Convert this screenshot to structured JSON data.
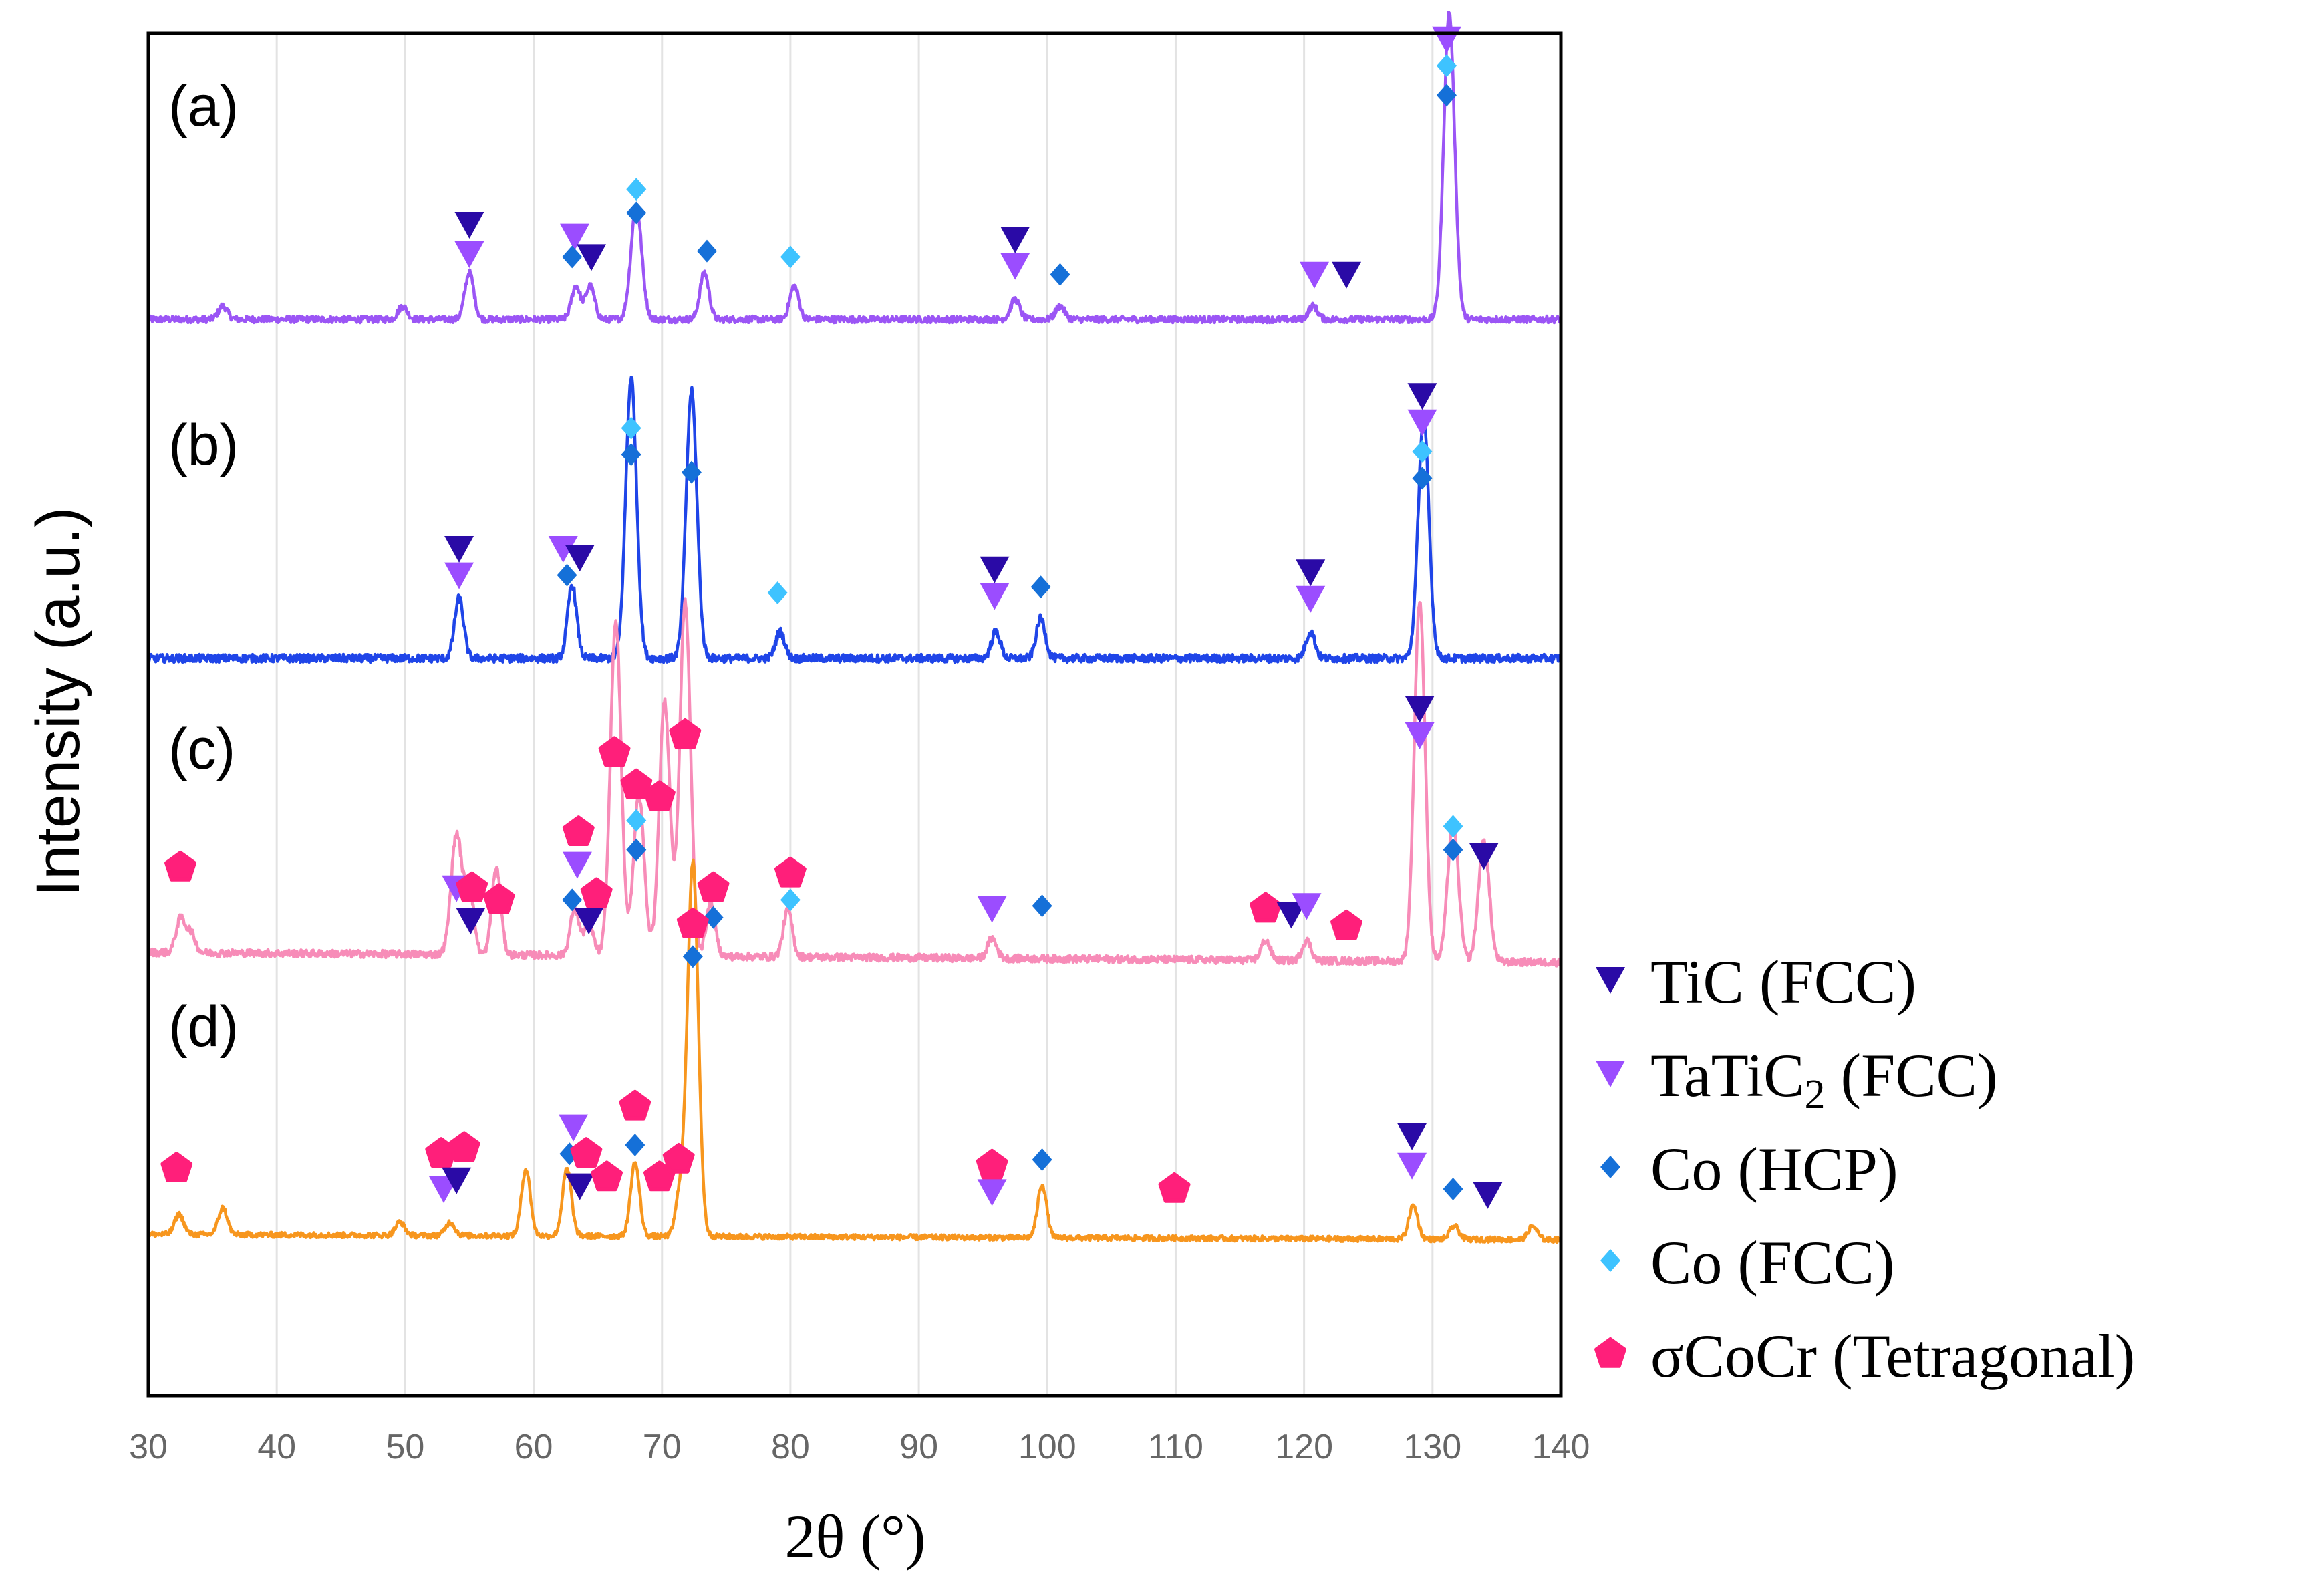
{
  "chart_data": {
    "type": "line",
    "title": "",
    "xlabel": "2θ (°)",
    "ylabel": "Intensity (a.u.)",
    "xlim": [
      30,
      140
    ],
    "xticks": [
      30,
      40,
      50,
      60,
      70,
      80,
      90,
      100,
      110,
      120,
      130,
      140
    ],
    "grid": "vertical",
    "y_scale": "arbitrary units, offset stacked patterns",
    "panel_labels": [
      "(a)",
      "(b)",
      "(c)",
      "(d)"
    ],
    "legend": [
      {
        "key": "tic",
        "label": "TiC (FCC)",
        "marker": "triangle-down",
        "color": "#2a0aa6"
      },
      {
        "key": "tatic2",
        "label_main": "TaTiC",
        "label_sub": "2",
        "label_tail": " (FCC)",
        "marker": "triangle-down",
        "color": "#9b4dff"
      },
      {
        "key": "cohcp",
        "label": "Co (HCP)",
        "marker": "diamond",
        "color": "#1570d8"
      },
      {
        "key": "cofcc",
        "label": "Co (FCC)",
        "marker": "diamond",
        "color": "#3ec3ff"
      },
      {
        "key": "sigma",
        "label": "σCoCr (Tetragonal)",
        "marker": "pentagon",
        "color": "#ff1f7a"
      }
    ],
    "series": [
      {
        "name": "(a)",
        "color": "#9b55f5",
        "baseline": 0.0,
        "noise": 0.01,
        "peaks": [
          {
            "x": 35.8,
            "h": 0.02
          },
          {
            "x": 49.8,
            "h": 0.02
          },
          {
            "x": 55.0,
            "h": 0.07
          },
          {
            "x": 63.3,
            "h": 0.05
          },
          {
            "x": 64.4,
            "h": 0.05
          },
          {
            "x": 68.0,
            "h": 0.17
          },
          {
            "x": 73.3,
            "h": 0.07
          },
          {
            "x": 80.3,
            "h": 0.05
          },
          {
            "x": 97.5,
            "h": 0.03
          },
          {
            "x": 101.0,
            "h": 0.02
          },
          {
            "x": 120.7,
            "h": 0.02
          },
          {
            "x": 131.3,
            "h": 0.46
          }
        ],
        "markers": [
          {
            "x": 55.0,
            "sym": "tic",
            "lvl": 2
          },
          {
            "x": 55.0,
            "sym": "tatic2",
            "lvl": 1
          },
          {
            "x": 63.2,
            "sym": "tatic2",
            "lvl": 1.6
          },
          {
            "x": 63.0,
            "sym": "cohcp",
            "lvl": 0.9
          },
          {
            "x": 64.5,
            "sym": "tic",
            "lvl": 0.9
          },
          {
            "x": 68.0,
            "sym": "cofcc",
            "lvl": 3.2
          },
          {
            "x": 68.0,
            "sym": "cohcp",
            "lvl": 2.4
          },
          {
            "x": 73.5,
            "sym": "cohcp",
            "lvl": 1.1
          },
          {
            "x": 80.0,
            "sym": "cofcc",
            "lvl": 0.9
          },
          {
            "x": 97.5,
            "sym": "tic",
            "lvl": 1.5
          },
          {
            "x": 97.5,
            "sym": "tatic2",
            "lvl": 0.6
          },
          {
            "x": 101.0,
            "sym": "cohcp",
            "lvl": 0.3
          },
          {
            "x": 120.8,
            "sym": "tatic2",
            "lvl": 0.3
          },
          {
            "x": 123.3,
            "sym": "tic",
            "lvl": 0.3
          },
          {
            "x": 131.1,
            "sym": "tatic2",
            "lvl": 8.3
          },
          {
            "x": 131.1,
            "sym": "cofcc",
            "lvl": 7.4
          },
          {
            "x": 131.1,
            "sym": "cohcp",
            "lvl": 6.4
          }
        ]
      },
      {
        "name": "(b)",
        "color": "#1f45e8",
        "baseline": 0.0,
        "noise": 0.012,
        "peaks": [
          {
            "x": 54.2,
            "h": 0.09
          },
          {
            "x": 63.0,
            "h": 0.11
          },
          {
            "x": 67.6,
            "h": 0.42
          },
          {
            "x": 72.3,
            "h": 0.4
          },
          {
            "x": 79.2,
            "h": 0.04
          },
          {
            "x": 96.0,
            "h": 0.04
          },
          {
            "x": 99.5,
            "h": 0.06
          },
          {
            "x": 120.5,
            "h": 0.04
          },
          {
            "x": 129.3,
            "h": 0.36
          }
        ],
        "markers": [
          {
            "x": 54.2,
            "sym": "tic",
            "lvl": 2.5
          },
          {
            "x": 54.2,
            "sym": "tatic2",
            "lvl": 1.6
          },
          {
            "x": 62.3,
            "sym": "tatic2",
            "lvl": 2.5
          },
          {
            "x": 63.6,
            "sym": "tic",
            "lvl": 2.2
          },
          {
            "x": 62.6,
            "sym": "cohcp",
            "lvl": 1.6
          },
          {
            "x": 67.6,
            "sym": "cofcc",
            "lvl": 6.6
          },
          {
            "x": 67.6,
            "sym": "cohcp",
            "lvl": 5.7
          },
          {
            "x": 72.3,
            "sym": "cohcp",
            "lvl": 5.1
          },
          {
            "x": 79.0,
            "sym": "cofcc",
            "lvl": 1.0
          },
          {
            "x": 95.9,
            "sym": "tic",
            "lvl": 1.8
          },
          {
            "x": 95.9,
            "sym": "tatic2",
            "lvl": 0.9
          },
          {
            "x": 99.5,
            "sym": "cohcp",
            "lvl": 1.2
          },
          {
            "x": 120.5,
            "sym": "tic",
            "lvl": 1.7
          },
          {
            "x": 120.5,
            "sym": "tatic2",
            "lvl": 0.8
          },
          {
            "x": 129.2,
            "sym": "tic",
            "lvl": 7.7
          },
          {
            "x": 129.2,
            "sym": "tatic2",
            "lvl": 6.8
          },
          {
            "x": 129.2,
            "sym": "cofcc",
            "lvl": 5.8
          },
          {
            "x": 129.2,
            "sym": "cohcp",
            "lvl": 4.9
          }
        ]
      },
      {
        "name": "(c)",
        "color": "#f78cb8",
        "baseline": 0.015,
        "noise": 0.011,
        "peaks": [
          {
            "x": 32.5,
            "h": 0.05
          },
          {
            "x": 33.3,
            "h": 0.03
          },
          {
            "x": 54.0,
            "h": 0.18
          },
          {
            "x": 55.0,
            "h": 0.1
          },
          {
            "x": 57.1,
            "h": 0.13
          },
          {
            "x": 63.2,
            "h": 0.07
          },
          {
            "x": 64.3,
            "h": 0.05
          },
          {
            "x": 66.4,
            "h": 0.5
          },
          {
            "x": 68.2,
            "h": 0.24
          },
          {
            "x": 70.2,
            "h": 0.38
          },
          {
            "x": 71.8,
            "h": 0.53
          },
          {
            "x": 73.8,
            "h": 0.08
          },
          {
            "x": 79.8,
            "h": 0.07
          },
          {
            "x": 95.7,
            "h": 0.03
          },
          {
            "x": 117.0,
            "h": 0.03
          },
          {
            "x": 120.2,
            "h": 0.03
          },
          {
            "x": 129.0,
            "h": 0.54
          },
          {
            "x": 131.6,
            "h": 0.21
          },
          {
            "x": 134.0,
            "h": 0.18
          }
        ],
        "markers": [
          {
            "x": 32.5,
            "sym": "sigma",
            "lvl": 2.0
          },
          {
            "x": 54.0,
            "sym": "tatic2",
            "lvl": 1.3
          },
          {
            "x": 55.2,
            "sym": "sigma",
            "lvl": 1.3
          },
          {
            "x": 55.1,
            "sym": "tic",
            "lvl": 0.2
          },
          {
            "x": 57.3,
            "sym": "sigma",
            "lvl": 0.9
          },
          {
            "x": 63.5,
            "sym": "sigma",
            "lvl": 3.2
          },
          {
            "x": 63.4,
            "sym": "tatic2",
            "lvl": 2.1
          },
          {
            "x": 63.0,
            "sym": "cohcp",
            "lvl": 0.9
          },
          {
            "x": 64.9,
            "sym": "sigma",
            "lvl": 1.1
          },
          {
            "x": 64.3,
            "sym": "tic",
            "lvl": 0.2
          },
          {
            "x": 66.3,
            "sym": "sigma",
            "lvl": 5.9
          },
          {
            "x": 68.0,
            "sym": "sigma",
            "lvl": 4.8
          },
          {
            "x": 69.8,
            "sym": "sigma",
            "lvl": 4.4
          },
          {
            "x": 68.0,
            "sym": "cofcc",
            "lvl": 3.6
          },
          {
            "x": 68.0,
            "sym": "cohcp",
            "lvl": 2.6
          },
          {
            "x": 71.8,
            "sym": "sigma",
            "lvl": 6.5
          },
          {
            "x": 74.0,
            "sym": "sigma",
            "lvl": 1.3
          },
          {
            "x": 74.0,
            "sym": "cohcp",
            "lvl": 0.3
          },
          {
            "x": 80.0,
            "sym": "sigma",
            "lvl": 1.8
          },
          {
            "x": 80.0,
            "sym": "cofcc",
            "lvl": 0.9
          },
          {
            "x": 95.7,
            "sym": "tatic2",
            "lvl": 0.6
          },
          {
            "x": 99.6,
            "sym": "cohcp",
            "lvl": 0.7
          },
          {
            "x": 117.0,
            "sym": "sigma",
            "lvl": 0.6
          },
          {
            "x": 119.0,
            "sym": "tic",
            "lvl": 0.4
          },
          {
            "x": 120.2,
            "sym": "tatic2",
            "lvl": 0.7
          },
          {
            "x": 123.3,
            "sym": "sigma",
            "lvl": 0.0
          },
          {
            "x": 129.0,
            "sym": "tic",
            "lvl": 7.4
          },
          {
            "x": 129.0,
            "sym": "tatic2",
            "lvl": 6.5
          },
          {
            "x": 131.6,
            "sym": "cofcc",
            "lvl": 3.4
          },
          {
            "x": 131.6,
            "sym": "cohcp",
            "lvl": 2.6
          },
          {
            "x": 134.0,
            "sym": "tic",
            "lvl": 2.4
          }
        ]
      },
      {
        "name": "(d)",
        "color": "#f7961e",
        "baseline": 0.008,
        "noise": 0.008,
        "peaks": [
          {
            "x": 32.4,
            "h": 0.03
          },
          {
            "x": 35.8,
            "h": 0.04
          },
          {
            "x": 49.6,
            "h": 0.02
          },
          {
            "x": 53.5,
            "h": 0.02
          },
          {
            "x": 59.4,
            "h": 0.1
          },
          {
            "x": 62.6,
            "h": 0.1
          },
          {
            "x": 67.9,
            "h": 0.11
          },
          {
            "x": 71.4,
            "h": 0.06
          },
          {
            "x": 72.4,
            "h": 0.56
          },
          {
            "x": 99.6,
            "h": 0.08
          },
          {
            "x": 128.5,
            "h": 0.05
          },
          {
            "x": 131.7,
            "h": 0.02
          },
          {
            "x": 137.8,
            "h": 0.02
          }
        ],
        "markers": [
          {
            "x": 32.2,
            "sym": "sigma",
            "lvl": 1.2
          },
          {
            "x": 52.8,
            "sym": "sigma",
            "lvl": 1.7
          },
          {
            "x": 54.6,
            "sym": "sigma",
            "lvl": 1.9
          },
          {
            "x": 53.0,
            "sym": "tatic2",
            "lvl": 0.5
          },
          {
            "x": 54.0,
            "sym": "tic",
            "lvl": 0.8
          },
          {
            "x": 63.1,
            "sym": "tatic2",
            "lvl": 2.6
          },
          {
            "x": 62.8,
            "sym": "cohcp",
            "lvl": 1.7
          },
          {
            "x": 64.1,
            "sym": "sigma",
            "lvl": 1.7
          },
          {
            "x": 63.6,
            "sym": "tic",
            "lvl": 0.6
          },
          {
            "x": 65.7,
            "sym": "sigma",
            "lvl": 0.9
          },
          {
            "x": 67.9,
            "sym": "sigma",
            "lvl": 3.3
          },
          {
            "x": 67.9,
            "sym": "cohcp",
            "lvl": 2.0
          },
          {
            "x": 69.8,
            "sym": "sigma",
            "lvl": 0.9
          },
          {
            "x": 71.3,
            "sym": "sigma",
            "lvl": 1.5
          },
          {
            "x": 72.4,
            "sym": "sigma",
            "lvl": 9.5
          },
          {
            "x": 72.4,
            "sym": "cohcp",
            "lvl": 8.4
          },
          {
            "x": 95.7,
            "sym": "sigma",
            "lvl": 1.3
          },
          {
            "x": 95.7,
            "sym": "tatic2",
            "lvl": 0.4
          },
          {
            "x": 99.6,
            "sym": "cohcp",
            "lvl": 1.5
          },
          {
            "x": 109.9,
            "sym": "sigma",
            "lvl": 0.5
          },
          {
            "x": 128.4,
            "sym": "tic",
            "lvl": 2.3
          },
          {
            "x": 128.4,
            "sym": "tatic2",
            "lvl": 1.3
          },
          {
            "x": 131.6,
            "sym": "cohcp",
            "lvl": 0.5
          },
          {
            "x": 134.3,
            "sym": "tic",
            "lvl": 0.3
          }
        ]
      }
    ]
  }
}
